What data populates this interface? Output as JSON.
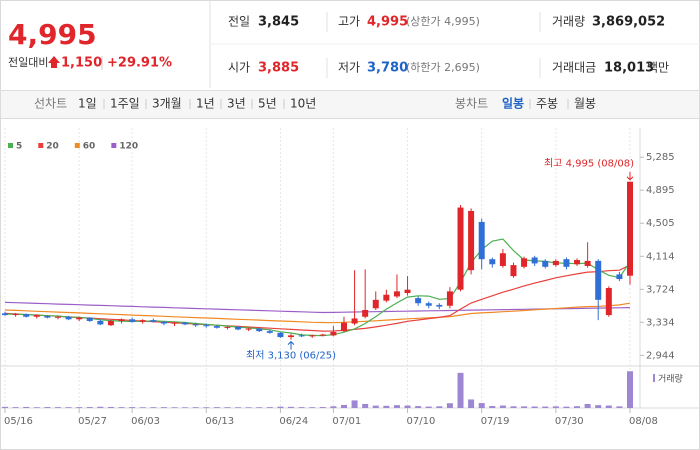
{
  "header": {
    "price": "4,995",
    "change_label": "전일대비",
    "change": "1,150",
    "change_pct": "+29.91%",
    "stats": [
      {
        "label": "전일",
        "value": "3,845"
      },
      {
        "label": "고가",
        "value": "4,995",
        "note": "(상한가 4,995)"
      },
      {
        "label": "거래량",
        "value": "3,869,052"
      },
      {
        "label": "시가",
        "value": "3,885"
      },
      {
        "label": "저가",
        "value": "3,780",
        "note": "(하한가 2,695)"
      },
      {
        "label": "거래대금",
        "value": "18,013",
        "unit": "백만"
      }
    ]
  },
  "tabs": {
    "line_label": "선차트",
    "line": [
      "1일",
      "1주일",
      "3개월",
      "1년",
      "3년",
      "5년",
      "10년"
    ],
    "candle_label": "봉차트",
    "candle": [
      "일봉",
      "주봉",
      "월봉"
    ]
  },
  "chart_data": [
    {
      "type": "candlestick",
      "up_color": "#e0262a",
      "down_color": "#2f6fd6",
      "categories": [
        "05/16",
        null,
        null,
        null,
        null,
        null,
        null,
        "05/27",
        null,
        null,
        null,
        null,
        "06/03",
        null,
        null,
        null,
        null,
        null,
        null,
        "06/13",
        null,
        null,
        null,
        null,
        null,
        null,
        "06/24",
        null,
        null,
        null,
        null,
        "07/01",
        null,
        null,
        null,
        null,
        null,
        null,
        "07/10",
        null,
        null,
        null,
        null,
        null,
        null,
        "07/19",
        null,
        null,
        null,
        null,
        null,
        null,
        "07/30",
        null,
        null,
        null,
        null,
        null,
        null,
        "08/08"
      ],
      "open": [
        3440,
        3420,
        3430,
        3400,
        3410,
        3390,
        3400,
        3370,
        3390,
        3350,
        3300,
        3350,
        3370,
        3340,
        3360,
        3340,
        3320,
        3330,
        3310,
        3300,
        3290,
        3270,
        3280,
        3250,
        3260,
        3230,
        3210,
        3160,
        3180,
        3170,
        3180,
        3180,
        3230,
        3320,
        3400,
        3500,
        3590,
        3640,
        3680,
        3620,
        3560,
        3540,
        3530,
        3720,
        3950,
        4520,
        4080,
        4000,
        3880,
        3990,
        4100,
        4060,
        4010,
        4080,
        4020,
        4000,
        4060,
        3420,
        3900,
        3885
      ],
      "high": [
        3460,
        3445,
        3440,
        3430,
        3420,
        3410,
        3410,
        3400,
        3395,
        3370,
        3360,
        3380,
        3390,
        3370,
        3380,
        3350,
        3340,
        3340,
        3330,
        3320,
        3300,
        3290,
        3290,
        3270,
        3270,
        3250,
        3220,
        3200,
        3200,
        3190,
        3200,
        3290,
        3400,
        3950,
        3960,
        3700,
        3720,
        3900,
        3880,
        3640,
        3580,
        3560,
        3750,
        4720,
        4680,
        4560,
        4100,
        4200,
        4040,
        4110,
        4120,
        4080,
        4080,
        4100,
        4090,
        4280,
        4080,
        3760,
        3930,
        4995
      ],
      "low": [
        3410,
        3400,
        3390,
        3380,
        3380,
        3370,
        3360,
        3350,
        3340,
        3300,
        3290,
        3320,
        3330,
        3320,
        3330,
        3300,
        3290,
        3300,
        3280,
        3270,
        3260,
        3250,
        3240,
        3230,
        3220,
        3200,
        3150,
        3130,
        3160,
        3150,
        3170,
        3170,
        3220,
        3300,
        3380,
        3480,
        3570,
        3620,
        3650,
        3530,
        3500,
        3490,
        3500,
        3700,
        3900,
        3960,
        3980,
        3980,
        3860,
        3970,
        4000,
        3970,
        3990,
        3960,
        4000,
        3980,
        3360,
        3400,
        3820,
        3780
      ],
      "close": [
        3420,
        3435,
        3400,
        3420,
        3390,
        3400,
        3370,
        3390,
        3350,
        3310,
        3350,
        3370,
        3340,
        3360,
        3340,
        3320,
        3330,
        3310,
        3300,
        3290,
        3270,
        3280,
        3250,
        3260,
        3230,
        3210,
        3160,
        3180,
        3170,
        3180,
        3190,
        3220,
        3330,
        3380,
        3480,
        3600,
        3660,
        3700,
        3720,
        3560,
        3530,
        3520,
        3700,
        4690,
        4650,
        4080,
        4020,
        4150,
        4010,
        4090,
        4030,
        3990,
        4060,
        3990,
        4070,
        4060,
        3600,
        3740,
        3845,
        4995
      ],
      "series": [
        {
          "name": "5",
          "color": "#4caf50",
          "values": [
            3430,
            3430,
            3425,
            3420,
            3413,
            3409,
            3396,
            3394,
            3382,
            3364,
            3354,
            3348,
            3344,
            3346,
            3352,
            3346,
            3340,
            3332,
            3320,
            3310,
            3300,
            3290,
            3278,
            3270,
            3258,
            3246,
            3222,
            3208,
            3186,
            3180,
            3176,
            3188,
            3218,
            3256,
            3320,
            3402,
            3490,
            3564,
            3632,
            3648,
            3644,
            3606,
            3616,
            3808,
            4038,
            4194,
            4292,
            4318,
            4182,
            4070,
            4060,
            4054,
            4036,
            4032,
            4028,
            4034,
            3954,
            3890,
            3863,
            4048
          ]
        },
        {
          "name": "20",
          "color": "#e8413c",
          "values": [
            3440,
            3433,
            3426,
            3419,
            3412,
            3405,
            3398,
            3391,
            3384,
            3377,
            3370,
            3363,
            3356,
            3349,
            3342,
            3335,
            3328,
            3321,
            3314,
            3307,
            3300,
            3293,
            3286,
            3279,
            3272,
            3265,
            3258,
            3251,
            3244,
            3237,
            3230,
            3232,
            3240,
            3250,
            3262,
            3280,
            3300,
            3322,
            3346,
            3362,
            3378,
            3392,
            3414,
            3490,
            3562,
            3606,
            3648,
            3690,
            3726,
            3764,
            3798,
            3828,
            3860,
            3884,
            3906,
            3928,
            3932,
            3944,
            3950,
            4010
          ]
        },
        {
          "name": "60",
          "color": "#f08a24",
          "values": [
            3480,
            3475,
            3470,
            3465,
            3460,
            3455,
            3450,
            3445,
            3440,
            3435,
            3430,
            3425,
            3420,
            3415,
            3410,
            3405,
            3400,
            3395,
            3390,
            3385,
            3380,
            3375,
            3370,
            3365,
            3360,
            3355,
            3350,
            3345,
            3340,
            3335,
            3332,
            3330,
            3334,
            3340,
            3346,
            3352,
            3360,
            3368,
            3376,
            3382,
            3388,
            3394,
            3402,
            3420,
            3438,
            3446,
            3452,
            3460,
            3466,
            3474,
            3482,
            3490,
            3498,
            3506,
            3514,
            3520,
            3522,
            3530,
            3540,
            3560
          ]
        },
        {
          "name": "120",
          "color": "#9c5fc8",
          "values": [
            3570,
            3566,
            3562,
            3558,
            3554,
            3550,
            3546,
            3542,
            3538,
            3534,
            3530,
            3526,
            3522,
            3518,
            3514,
            3510,
            3506,
            3502,
            3498,
            3494,
            3490,
            3486,
            3482,
            3478,
            3474,
            3470,
            3466,
            3462,
            3458,
            3454,
            3450,
            3452,
            3454,
            3456,
            3458,
            3460,
            3462,
            3464,
            3466,
            3468,
            3470,
            3472,
            3474,
            3476,
            3478,
            3480,
            3482,
            3484,
            3486,
            3488,
            3490,
            3492,
            3494,
            3496,
            3498,
            3500,
            3502,
            3504,
            3506,
            3508
          ]
        }
      ],
      "ylim": [
        2830,
        5370
      ],
      "yticks": [
        {
          "value": 5285,
          "label": "5,285"
        },
        {
          "value": 4895,
          "label": "4,895"
        },
        {
          "value": 4505,
          "label": "4,505"
        },
        {
          "value": 4114,
          "label": "4,114"
        },
        {
          "value": 3724,
          "label": "3,724"
        },
        {
          "value": 3334,
          "label": "3,334"
        },
        {
          "value": 2944,
          "label": "2,944"
        }
      ],
      "annotations": [
        {
          "text": "최고 4,995 (08/08)"
        },
        {
          "text": "최저 3,130 (06/25)"
        }
      ]
    },
    {
      "type": "bar",
      "legend": "거래량",
      "color": "#9d86d2",
      "ylim": [
        0,
        4000000
      ],
      "values": [
        120000,
        90000,
        110000,
        80000,
        100000,
        90000,
        85000,
        95000,
        100000,
        130000,
        110000,
        90000,
        95000,
        80000,
        85000,
        90000,
        80000,
        75000,
        85000,
        80000,
        90000,
        85000,
        80000,
        75000,
        80000,
        90000,
        140000,
        120000,
        90000,
        85000,
        100000,
        180000,
        320000,
        800000,
        420000,
        250000,
        230000,
        300000,
        260000,
        200000,
        150000,
        180000,
        500000,
        3700000,
        900000,
        520000,
        210000,
        260000,
        180000,
        170000,
        160000,
        150000,
        170000,
        140000,
        190000,
        420000,
        300000,
        260000,
        170000,
        3869052
      ]
    }
  ]
}
